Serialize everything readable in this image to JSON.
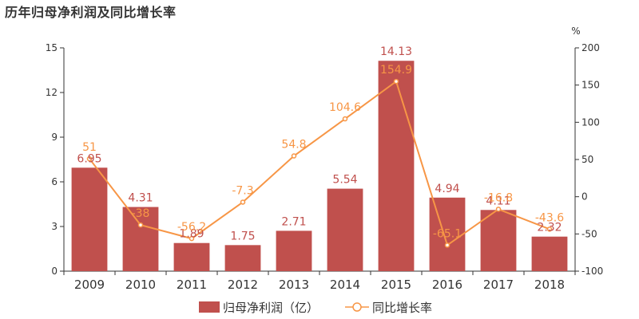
{
  "title": "历年归母净利润及同比增长率",
  "chart_data": {
    "type": "bar",
    "categories": [
      "2009",
      "2010",
      "2011",
      "2012",
      "2013",
      "2014",
      "2015",
      "2016",
      "2017",
      "2018"
    ],
    "series": [
      {
        "name": "归母净利润（亿）",
        "type": "bar",
        "axis": "left",
        "values": [
          6.95,
          4.31,
          1.89,
          1.75,
          2.71,
          5.54,
          14.13,
          4.94,
          4.11,
          2.32
        ],
        "labels": [
          "6.95",
          "4.31",
          "1.89",
          "1.75",
          "2.71",
          "5.54",
          "14.13",
          "4.94",
          "4.11",
          "2.32"
        ],
        "color": "#c0504d"
      },
      {
        "name": "同比增长率",
        "type": "line",
        "axis": "right",
        "values": [
          51,
          -38,
          -56.2,
          -7.3,
          54.8,
          104.6,
          154.9,
          -65.1,
          -16.8,
          -43.6
        ],
        "labels": [
          "51",
          "-38",
          "-56.2",
          "-7.3",
          "54.8",
          "104.6",
          "154.9",
          "-65.1",
          "-16.8",
          "-43.6"
        ],
        "color": "#f79646"
      }
    ],
    "left_axis": {
      "ylim": [
        0,
        15
      ],
      "ticks": [
        "0",
        "3",
        "6",
        "9",
        "12",
        "15"
      ]
    },
    "right_axis": {
      "ylim": [
        -100,
        200
      ],
      "ticks": [
        "-100",
        "-50",
        "0",
        "50",
        "100",
        "150",
        "200"
      ],
      "unit": "%"
    },
    "legend_position": "bottom-center",
    "grid": false
  }
}
